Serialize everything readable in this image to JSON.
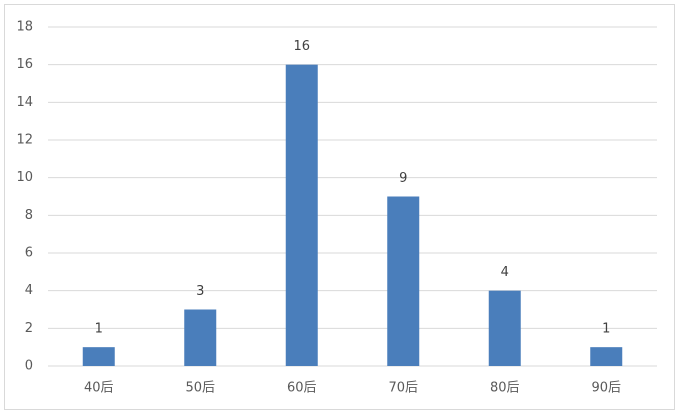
{
  "chart_data": {
    "type": "bar",
    "categories": [
      "40后",
      "50后",
      "60后",
      "70后",
      "80后",
      "90后"
    ],
    "values": [
      1,
      3,
      16,
      9,
      4,
      1
    ],
    "color": "#4a7ebb",
    "ylim": [
      0,
      18
    ],
    "yticks": [
      0,
      2,
      4,
      6,
      8,
      10,
      12,
      14,
      16,
      18
    ],
    "grid": true,
    "data_labels": true
  }
}
